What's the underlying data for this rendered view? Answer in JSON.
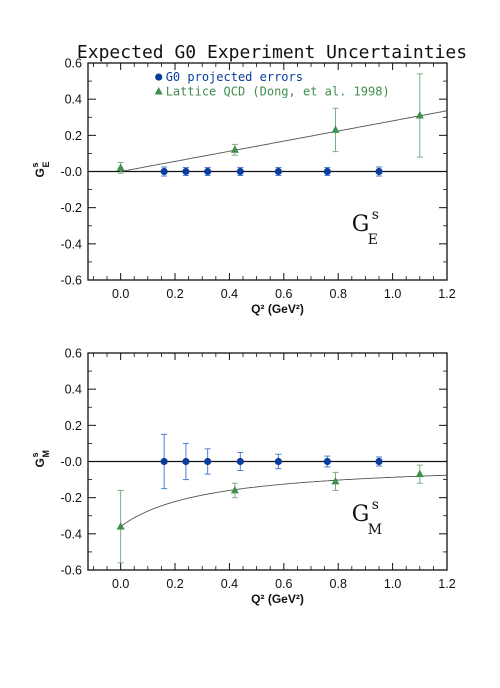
{
  "title": "Expected G0 Experiment Uncertainties",
  "colors": {
    "g0": "#0a3d9e",
    "lattice": "#3f8f4f",
    "g0_err": "#4a7fd0",
    "lattice_err": "#7fae84"
  },
  "chart_data": [
    {
      "type": "scatter",
      "panel": "GE",
      "xlabel": "Q² (GeV²)",
      "ylabel_main": "G",
      "ylabel_sup": "s",
      "ylabel_sub": "E",
      "annotation": {
        "main": "G",
        "sup": "s",
        "sub": "E"
      },
      "xlim": [
        -0.12,
        1.2
      ],
      "ylim": [
        -0.6,
        0.6
      ],
      "xticks": [
        "0.0",
        "0.2",
        "0.4",
        "0.6",
        "0.8",
        "1.0",
        "1.2"
      ],
      "xtick_values": [
        0.0,
        0.2,
        0.4,
        0.6,
        0.8,
        1.0,
        1.2
      ],
      "yticks": [
        "0.6",
        "0.4",
        "0.2",
        "-0.0",
        "-0.2",
        "-0.4",
        "-0.6"
      ],
      "ytick_values": [
        0.6,
        0.4,
        0.2,
        0.0,
        -0.2,
        -0.4,
        -0.6
      ],
      "legend": [
        "G0 projected errors",
        "Lattice QCD (Dong, et al. 1998)"
      ],
      "legend_position": "top-left",
      "series": [
        {
          "name": "G0 projected errors",
          "marker": "circle",
          "points": [
            {
              "x": 0.16,
              "y": 0.0,
              "err": 0.025
            },
            {
              "x": 0.24,
              "y": 0.0,
              "err": 0.022
            },
            {
              "x": 0.32,
              "y": 0.0,
              "err": 0.022
            },
            {
              "x": 0.44,
              "y": 0.0,
              "err": 0.022
            },
            {
              "x": 0.58,
              "y": 0.0,
              "err": 0.022
            },
            {
              "x": 0.76,
              "y": 0.0,
              "err": 0.022
            },
            {
              "x": 0.95,
              "y": 0.0,
              "err": 0.025
            }
          ]
        },
        {
          "name": "Lattice QCD (Dong, et al. 1998)",
          "marker": "triangle",
          "points": [
            {
              "x": 0.0,
              "y": 0.02,
              "err": 0.03
            },
            {
              "x": 0.42,
              "y": 0.12,
              "err": 0.03
            },
            {
              "x": 0.79,
              "y": 0.23,
              "err": 0.12
            },
            {
              "x": 1.1,
              "y": 0.31,
              "err": 0.23
            }
          ]
        }
      ],
      "fit_curve": {
        "form": "linear",
        "slope": 0.28,
        "intercept": 0.0
      }
    },
    {
      "type": "scatter",
      "panel": "GM",
      "xlabel": "Q² (GeV²)",
      "ylabel_main": "G",
      "ylabel_sup": "s",
      "ylabel_sub": "M",
      "annotation": {
        "main": "G",
        "sup": "s",
        "sub": "M"
      },
      "xlim": [
        -0.12,
        1.2
      ],
      "ylim": [
        -0.6,
        0.6
      ],
      "xticks": [
        "0.0",
        "0.2",
        "0.4",
        "0.6",
        "0.8",
        "1.0",
        "1.2"
      ],
      "xtick_values": [
        0.0,
        0.2,
        0.4,
        0.6,
        0.8,
        1.0,
        1.2
      ],
      "yticks": [
        "0.6",
        "0.4",
        "0.2",
        "-0.0",
        "-0.2",
        "-0.4",
        "-0.6"
      ],
      "ytick_values": [
        0.6,
        0.4,
        0.2,
        0.0,
        -0.2,
        -0.4,
        -0.6
      ],
      "series": [
        {
          "name": "G0 projected errors",
          "marker": "circle",
          "points": [
            {
              "x": 0.16,
              "y": 0.0,
              "err": 0.15
            },
            {
              "x": 0.24,
              "y": 0.0,
              "err": 0.1
            },
            {
              "x": 0.32,
              "y": 0.0,
              "err": 0.07
            },
            {
              "x": 0.44,
              "y": 0.0,
              "err": 0.05
            },
            {
              "x": 0.58,
              "y": 0.0,
              "err": 0.04
            },
            {
              "x": 0.76,
              "y": 0.0,
              "err": 0.03
            },
            {
              "x": 0.95,
              "y": 0.0,
              "err": 0.025
            }
          ]
        },
        {
          "name": "Lattice QCD (Dong, et al. 1998)",
          "marker": "triangle",
          "points": [
            {
              "x": 0.0,
              "y": -0.36,
              "err": 0.2
            },
            {
              "x": 0.42,
              "y": -0.16,
              "err": 0.04
            },
            {
              "x": 0.79,
              "y": -0.11,
              "err": 0.05
            },
            {
              "x": 1.1,
              "y": -0.07,
              "err": 0.05
            }
          ]
        }
      ],
      "fit_curve": {
        "form": "dipole",
        "g0": -0.36,
        "mass2": 0.32
      }
    }
  ]
}
